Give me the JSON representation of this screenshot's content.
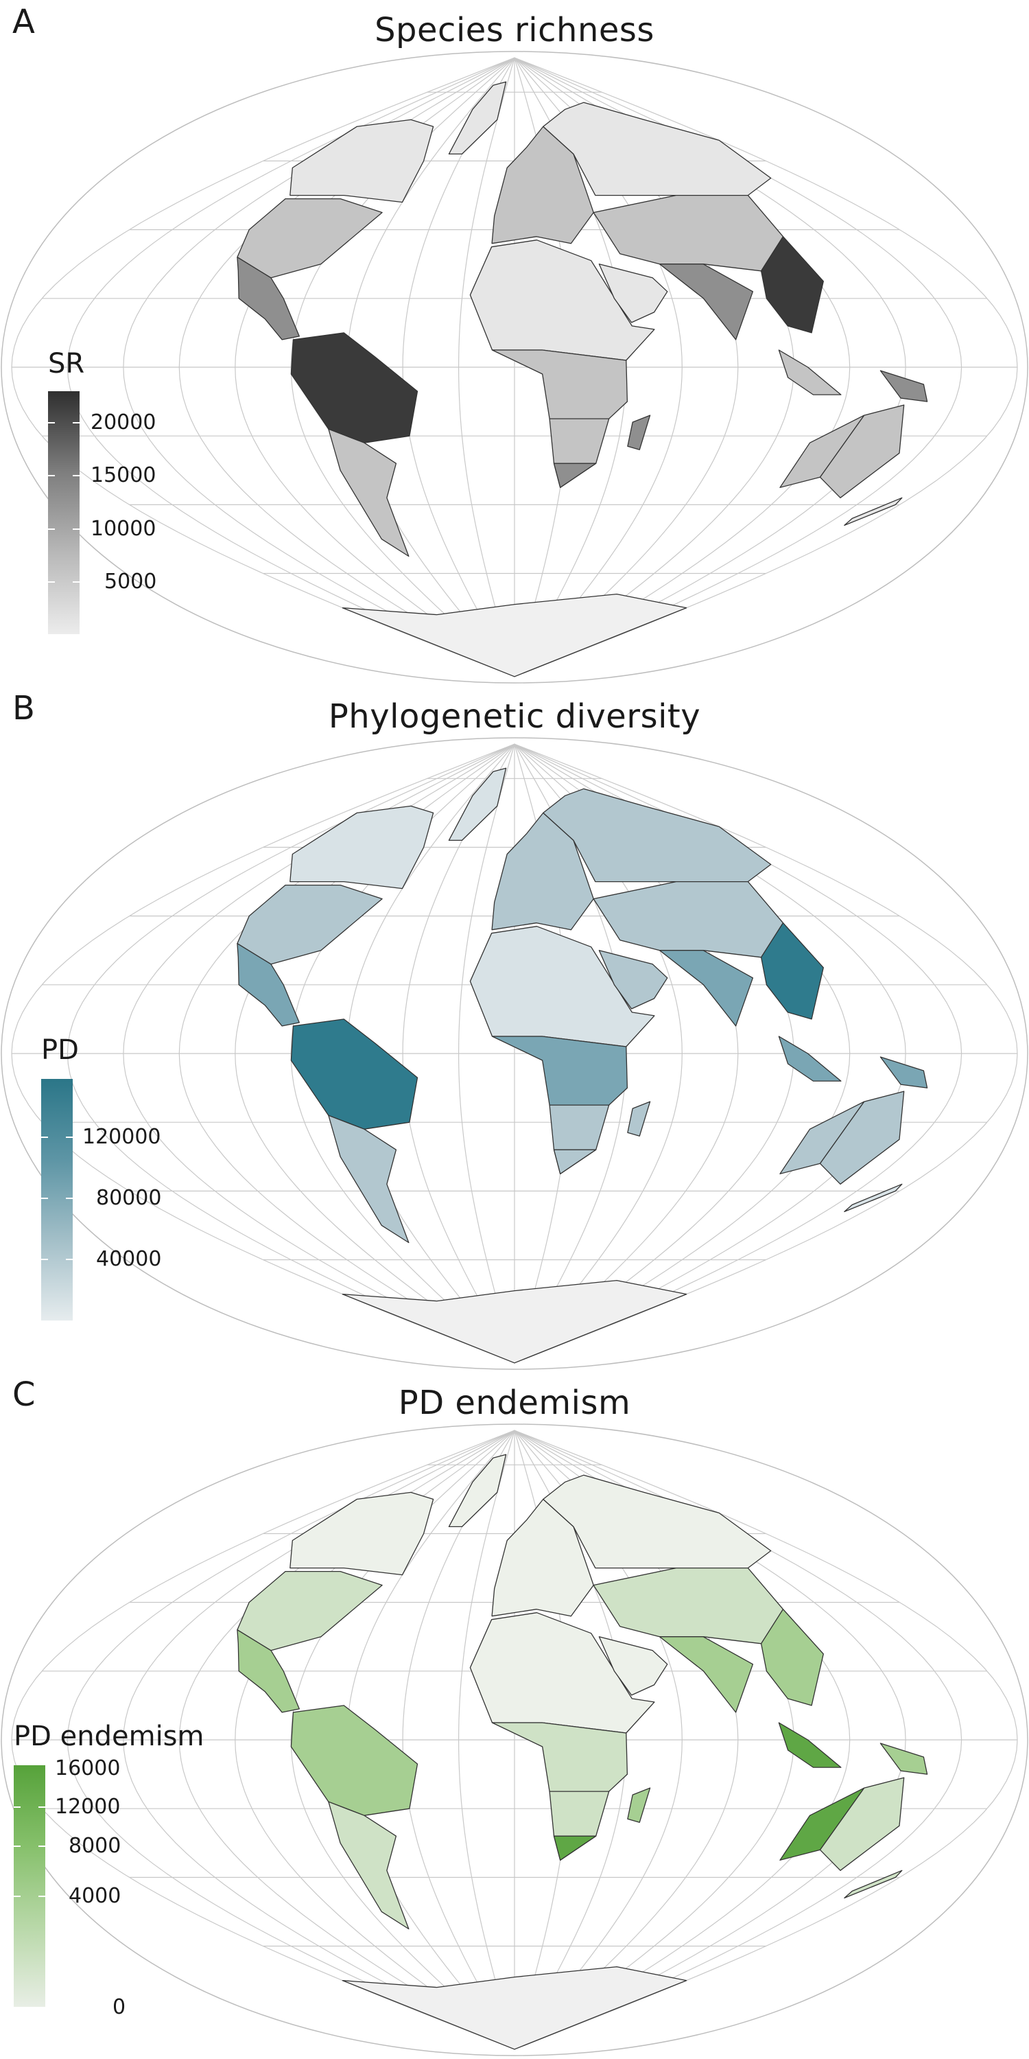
{
  "panels": [
    {
      "letter": "A",
      "title": "Species richness",
      "legend": {
        "title": "SR",
        "colors": [
          "#ececec",
          "#b8b8b8",
          "#7e7e7e",
          "#2f2f2f"
        ],
        "ticks": [
          "20000",
          "15000",
          "10000",
          "5000"
        ]
      }
    },
    {
      "letter": "B",
      "title": "Phylogenetic diversity",
      "legend": {
        "title": "PD",
        "colors": [
          "#e6ecee",
          "#a3bfc8",
          "#5d95a5",
          "#2b7688"
        ],
        "ticks": [
          "120000",
          "80000",
          "40000"
        ]
      }
    },
    {
      "letter": "C",
      "title": "PD endemism",
      "legend": {
        "title": "PD endemism",
        "colors": [
          "#e8eee5",
          "#b8d8a8",
          "#86c06b",
          "#56a23a"
        ],
        "ticks": [
          "16000",
          "12000",
          "8000",
          "4000",
          "0"
        ]
      }
    }
  ]
}
